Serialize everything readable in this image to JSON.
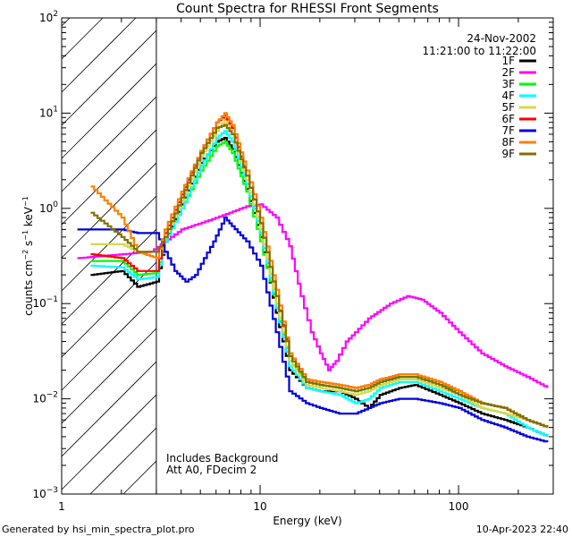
{
  "footer": {
    "generated_by": "Generated by hsi_min_spectra_plot.pro",
    "timestamp": "10-Apr-2023 22:40"
  },
  "chart_data": {
    "type": "line",
    "title": "Count Spectra for RHESSI Front Segments",
    "date": "24-Nov-2002",
    "time_range": "11:21:00 to 11:22:00",
    "xlabel": "Energy (keV)",
    "ylabel": "counts cm^-2 s^-1 keV^-1",
    "ylabel_parts": {
      "base": "counts cm",
      "exp1": "−2",
      "mid1": " s",
      "exp2": "−1",
      "mid2": " keV",
      "exp3": "−1"
    },
    "x_scale": "log",
    "y_scale": "log",
    "xlim": [
      1,
      300
    ],
    "ylim": [
      0.001,
      100
    ],
    "x_ticks": [
      {
        "value": 1,
        "label": "1"
      },
      {
        "value": 10,
        "label": "10"
      },
      {
        "value": 100,
        "label": "100"
      }
    ],
    "y_ticks": [
      {
        "value": 0.001,
        "base": "10",
        "exp": "−3"
      },
      {
        "value": 0.01,
        "base": "10",
        "exp": "−2"
      },
      {
        "value": 0.1,
        "base": "10",
        "exp": "−1"
      },
      {
        "value": 1,
        "base": "10",
        "exp": "0"
      },
      {
        "value": 10,
        "base": "10",
        "exp": "1"
      },
      {
        "value": 100,
        "base": "10",
        "exp": "2"
      }
    ],
    "excluded_region_kev": [
      1,
      3
    ],
    "annotations": [
      "Includes Background",
      "Att A0, FDecim 2"
    ],
    "legend_position": "top-right",
    "series": [
      {
        "name": "1F",
        "color": "#000000",
        "points": [
          [
            1.4,
            0.2
          ],
          [
            2.0,
            0.22
          ],
          [
            2.4,
            0.15
          ],
          [
            3.0,
            0.17
          ],
          [
            3.3,
            0.45
          ],
          [
            4.0,
            1.1
          ],
          [
            5.0,
            3.0
          ],
          [
            6.0,
            5.0
          ],
          [
            6.6,
            5.5
          ],
          [
            7.2,
            4.2
          ],
          [
            8.5,
            1.6
          ],
          [
            10,
            0.5
          ],
          [
            12,
            0.08
          ],
          [
            14,
            0.02
          ],
          [
            17,
            0.013
          ],
          [
            20,
            0.012
          ],
          [
            25,
            0.012
          ],
          [
            30,
            0.01
          ],
          [
            35,
            0.008
          ],
          [
            40,
            0.011
          ],
          [
            50,
            0.013
          ],
          [
            60,
            0.014
          ],
          [
            80,
            0.011
          ],
          [
            100,
            0.009
          ],
          [
            130,
            0.007
          ],
          [
            170,
            0.006
          ],
          [
            220,
            0.005
          ],
          [
            280,
            0.004
          ]
        ]
      },
      {
        "name": "2F",
        "color": "#ff00ff",
        "points": [
          [
            1.2,
            0.3
          ],
          [
            2.8,
            0.35
          ],
          [
            4.0,
            0.6
          ],
          [
            5.5,
            0.75
          ],
          [
            7.0,
            0.9
          ],
          [
            8.5,
            1.05
          ],
          [
            10,
            1.1
          ],
          [
            12,
            0.8
          ],
          [
            14,
            0.4
          ],
          [
            16,
            0.12
          ],
          [
            18,
            0.05
          ],
          [
            20,
            0.03
          ],
          [
            22,
            0.02
          ],
          [
            24,
            0.025
          ],
          [
            27,
            0.04
          ],
          [
            30,
            0.05
          ],
          [
            35,
            0.07
          ],
          [
            45,
            0.1
          ],
          [
            55,
            0.12
          ],
          [
            65,
            0.11
          ],
          [
            80,
            0.08
          ],
          [
            100,
            0.05
          ],
          [
            130,
            0.03
          ],
          [
            170,
            0.022
          ],
          [
            220,
            0.017
          ],
          [
            280,
            0.013
          ]
        ]
      },
      {
        "name": "3F",
        "color": "#00ff00",
        "points": [
          [
            1.4,
            0.28
          ],
          [
            2.0,
            0.28
          ],
          [
            2.4,
            0.2
          ],
          [
            3.0,
            0.21
          ],
          [
            3.3,
            0.45
          ],
          [
            4.0,
            1.0
          ],
          [
            5.0,
            2.5
          ],
          [
            6.0,
            4.5
          ],
          [
            6.6,
            5.0
          ],
          [
            7.2,
            3.8
          ],
          [
            8.5,
            1.5
          ],
          [
            10,
            0.45
          ],
          [
            12,
            0.09
          ],
          [
            14,
            0.025
          ],
          [
            17,
            0.015
          ],
          [
            20,
            0.014
          ],
          [
            25,
            0.013
          ],
          [
            30,
            0.012
          ],
          [
            35,
            0.013
          ],
          [
            40,
            0.015
          ],
          [
            50,
            0.017
          ],
          [
            60,
            0.017
          ],
          [
            80,
            0.014
          ],
          [
            100,
            0.012
          ],
          [
            130,
            0.009
          ],
          [
            170,
            0.008
          ],
          [
            220,
            0.006
          ],
          [
            280,
            0.005
          ]
        ]
      },
      {
        "name": "4F",
        "color": "#00ffff",
        "points": [
          [
            1.4,
            0.25
          ],
          [
            2.0,
            0.24
          ],
          [
            2.4,
            0.18
          ],
          [
            3.0,
            0.19
          ],
          [
            3.3,
            0.45
          ],
          [
            4.0,
            1.0
          ],
          [
            5.0,
            2.8
          ],
          [
            6.0,
            5.5
          ],
          [
            6.6,
            6.5
          ],
          [
            7.2,
            5.0
          ],
          [
            8.5,
            1.8
          ],
          [
            10,
            0.55
          ],
          [
            12,
            0.09
          ],
          [
            14,
            0.022
          ],
          [
            17,
            0.013
          ],
          [
            20,
            0.012
          ],
          [
            25,
            0.011
          ],
          [
            30,
            0.009
          ],
          [
            35,
            0.01
          ],
          [
            40,
            0.013
          ],
          [
            50,
            0.015
          ],
          [
            60,
            0.015
          ],
          [
            80,
            0.012
          ],
          [
            100,
            0.01
          ],
          [
            130,
            0.008
          ],
          [
            170,
            0.007
          ],
          [
            220,
            0.005
          ],
          [
            280,
            0.004
          ]
        ]
      },
      {
        "name": "5F",
        "color": "#d8d84a",
        "points": [
          [
            1.4,
            0.42
          ],
          [
            2.0,
            0.42
          ],
          [
            2.4,
            0.35
          ],
          [
            3.0,
            0.35
          ],
          [
            3.3,
            0.5
          ],
          [
            4.0,
            1.2
          ],
          [
            5.0,
            3.5
          ],
          [
            6.0,
            6.5
          ],
          [
            6.6,
            8.5
          ],
          [
            7.2,
            6.0
          ],
          [
            8.5,
            2.0
          ],
          [
            10,
            0.6
          ],
          [
            12,
            0.1
          ],
          [
            14,
            0.025
          ],
          [
            17,
            0.014
          ],
          [
            20,
            0.013
          ],
          [
            25,
            0.012
          ],
          [
            30,
            0.011
          ],
          [
            35,
            0.012
          ],
          [
            40,
            0.014
          ],
          [
            50,
            0.016
          ],
          [
            60,
            0.016
          ],
          [
            80,
            0.013
          ],
          [
            100,
            0.011
          ],
          [
            130,
            0.008
          ],
          [
            170,
            0.007
          ],
          [
            220,
            0.006
          ],
          [
            280,
            0.005
          ]
        ]
      },
      {
        "name": "6F",
        "color": "#ff0000",
        "points": [
          [
            1.4,
            0.33
          ],
          [
            2.0,
            0.3
          ],
          [
            2.4,
            0.22
          ],
          [
            3.0,
            0.22
          ],
          [
            3.3,
            0.55
          ],
          [
            4.0,
            1.4
          ],
          [
            5.0,
            4.0
          ],
          [
            6.0,
            8.0
          ],
          [
            6.6,
            9.5
          ],
          [
            7.2,
            7.0
          ],
          [
            8.5,
            2.2
          ],
          [
            10,
            0.7
          ],
          [
            12,
            0.12
          ],
          [
            14,
            0.03
          ],
          [
            17,
            0.016
          ],
          [
            20,
            0.015
          ],
          [
            25,
            0.014
          ],
          [
            30,
            0.013
          ],
          [
            35,
            0.014
          ],
          [
            40,
            0.016
          ],
          [
            50,
            0.018
          ],
          [
            60,
            0.018
          ],
          [
            80,
            0.015
          ],
          [
            100,
            0.012
          ],
          [
            130,
            0.009
          ],
          [
            170,
            0.008
          ],
          [
            220,
            0.006
          ],
          [
            280,
            0.005
          ]
        ]
      },
      {
        "name": "7F",
        "color": "#0000dd",
        "points": [
          [
            1.2,
            0.6
          ],
          [
            2.0,
            0.6
          ],
          [
            2.4,
            0.55
          ],
          [
            3.0,
            0.55
          ],
          [
            3.3,
            0.35
          ],
          [
            3.7,
            0.22
          ],
          [
            4.2,
            0.17
          ],
          [
            4.7,
            0.2
          ],
          [
            5.2,
            0.3
          ],
          [
            5.8,
            0.45
          ],
          [
            6.6,
            0.8
          ],
          [
            7.2,
            0.65
          ],
          [
            8.5,
            0.45
          ],
          [
            10,
            0.25
          ],
          [
            12,
            0.05
          ],
          [
            14,
            0.012
          ],
          [
            17,
            0.009
          ],
          [
            20,
            0.008
          ],
          [
            25,
            0.007
          ],
          [
            30,
            0.007
          ],
          [
            35,
            0.008
          ],
          [
            40,
            0.009
          ],
          [
            50,
            0.01
          ],
          [
            60,
            0.01
          ],
          [
            80,
            0.009
          ],
          [
            100,
            0.008
          ],
          [
            130,
            0.006
          ],
          [
            170,
            0.005
          ],
          [
            220,
            0.004
          ],
          [
            280,
            0.0035
          ]
        ]
      },
      {
        "name": "8F",
        "color": "#ff8000",
        "points": [
          [
            1.4,
            1.7
          ],
          [
            2.0,
            0.8
          ],
          [
            2.4,
            0.35
          ],
          [
            3.0,
            0.3
          ],
          [
            3.3,
            0.6
          ],
          [
            4.0,
            1.5
          ],
          [
            5.0,
            4.0
          ],
          [
            6.0,
            8.0
          ],
          [
            6.6,
            10
          ],
          [
            7.2,
            7.5
          ],
          [
            8.5,
            2.5
          ],
          [
            10,
            0.8
          ],
          [
            12,
            0.14
          ],
          [
            14,
            0.03
          ],
          [
            17,
            0.016
          ],
          [
            20,
            0.015
          ],
          [
            25,
            0.014
          ],
          [
            30,
            0.013
          ],
          [
            35,
            0.014
          ],
          [
            40,
            0.016
          ],
          [
            50,
            0.018
          ],
          [
            60,
            0.018
          ],
          [
            80,
            0.015
          ],
          [
            100,
            0.012
          ],
          [
            130,
            0.009
          ],
          [
            170,
            0.008
          ],
          [
            220,
            0.006
          ],
          [
            280,
            0.005
          ]
        ]
      },
      {
        "name": "9F",
        "color": "#807000",
        "points": [
          [
            1.4,
            0.9
          ],
          [
            2.0,
            0.5
          ],
          [
            2.4,
            0.35
          ],
          [
            3.0,
            0.35
          ],
          [
            3.3,
            0.5
          ],
          [
            4.0,
            1.3
          ],
          [
            5.0,
            3.8
          ],
          [
            6.0,
            7.0
          ],
          [
            6.6,
            7.5
          ],
          [
            7.2,
            6.0
          ],
          [
            8.5,
            2.2
          ],
          [
            10,
            0.7
          ],
          [
            12,
            0.12
          ],
          [
            14,
            0.028
          ],
          [
            17,
            0.015
          ],
          [
            20,
            0.014
          ],
          [
            25,
            0.013
          ],
          [
            30,
            0.012
          ],
          [
            35,
            0.013
          ],
          [
            40,
            0.015
          ],
          [
            50,
            0.017
          ],
          [
            60,
            0.017
          ],
          [
            80,
            0.014
          ],
          [
            100,
            0.011
          ],
          [
            130,
            0.009
          ],
          [
            170,
            0.008
          ],
          [
            220,
            0.006
          ],
          [
            280,
            0.005
          ]
        ]
      }
    ]
  }
}
